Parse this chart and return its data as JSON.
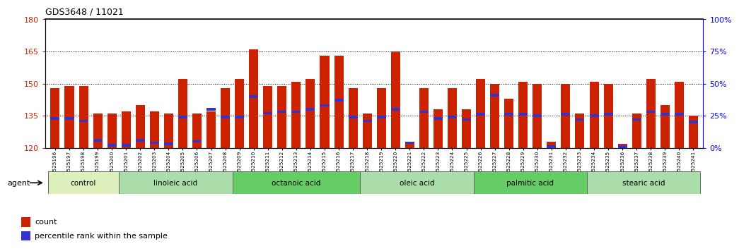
{
  "title": "GDS3648 / 11021",
  "ylim_left": [
    120,
    180
  ],
  "ylim_right": [
    0,
    100
  ],
  "yticks_left": [
    120,
    135,
    150,
    165,
    180
  ],
  "yticks_right": [
    0,
    25,
    50,
    75,
    100
  ],
  "ytick_labels_right": [
    "0%",
    "25%",
    "50%",
    "75%",
    "100%"
  ],
  "bar_color": "#cc2200",
  "blue_color": "#3333cc",
  "samples": [
    "GSM525196",
    "GSM525197",
    "GSM525198",
    "GSM525199",
    "GSM525200",
    "GSM525201",
    "GSM525202",
    "GSM525203",
    "GSM525204",
    "GSM525205",
    "GSM525206",
    "GSM525207",
    "GSM525208",
    "GSM525209",
    "GSM525210",
    "GSM525211",
    "GSM525212",
    "GSM525213",
    "GSM525214",
    "GSM525215",
    "GSM525216",
    "GSM525217",
    "GSM525218",
    "GSM525219",
    "GSM525220",
    "GSM525221",
    "GSM525222",
    "GSM525223",
    "GSM525224",
    "GSM525225",
    "GSM525226",
    "GSM525227",
    "GSM525228",
    "GSM525229",
    "GSM525230",
    "GSM525231",
    "GSM525232",
    "GSM525233",
    "GSM525234",
    "GSM525235",
    "GSM525236",
    "GSM525237",
    "GSM525238",
    "GSM525239",
    "GSM525240",
    "GSM525241"
  ],
  "bar_heights": [
    148,
    149,
    149,
    136,
    136,
    137,
    140,
    137,
    136,
    152,
    136,
    137,
    148,
    152,
    166,
    149,
    149,
    151,
    152,
    163,
    163,
    148,
    136,
    148,
    165,
    122,
    148,
    138,
    148,
    138,
    152,
    150,
    143,
    151,
    150,
    123,
    150,
    136,
    151,
    150,
    122,
    136,
    152,
    140,
    151,
    135
  ],
  "blue_pct": [
    23,
    23,
    21,
    6,
    2,
    2,
    6,
    4,
    3,
    24,
    5,
    30,
    24,
    24,
    40,
    27,
    28,
    28,
    30,
    33,
    37,
    24,
    21,
    24,
    30,
    4,
    28,
    23,
    24,
    22,
    26,
    41,
    26,
    26,
    25,
    1,
    26,
    22,
    25,
    26,
    1,
    22,
    28,
    26,
    26,
    20
  ],
  "groups": [
    {
      "label": "control",
      "start": 0,
      "end": 4,
      "color": "#cceeaa"
    },
    {
      "label": "linoleic acid",
      "start": 5,
      "end": 12,
      "color": "#aaddaa"
    },
    {
      "label": "octanoic acid",
      "start": 13,
      "end": 21,
      "color": "#66cc66"
    },
    {
      "label": "oleic acid",
      "start": 22,
      "end": 29,
      "color": "#aaddaa"
    },
    {
      "label": "palmitic acid",
      "start": 30,
      "end": 37,
      "color": "#66cc66"
    },
    {
      "label": "stearic acid",
      "start": 38,
      "end": 45,
      "color": "#aaddaa"
    }
  ],
  "agent_label": "agent",
  "legend_count": "count",
  "legend_pct": "percentile rank within the sample"
}
